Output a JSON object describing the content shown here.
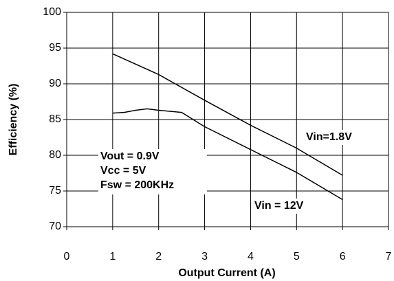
{
  "chart_data": {
    "type": "line",
    "x_label": "Output Current (A)",
    "y_label": "Efficiency (%)",
    "xlim": [
      0,
      7
    ],
    "xticks": [
      0,
      1,
      2,
      3,
      4,
      5,
      6,
      7
    ],
    "ylim": [
      70,
      100
    ],
    "yticks": [
      70,
      75,
      80,
      85,
      90,
      95,
      100
    ],
    "grid": true,
    "series": [
      {
        "name": "Vin=1.8V",
        "color": "#000000",
        "x": [
          1,
          2,
          3,
          4,
          5,
          6
        ],
        "values": [
          94.2,
          91.3,
          87.7,
          84.2,
          81.0,
          77.2
        ]
      },
      {
        "name": "Vin = 12V",
        "color": "#000000",
        "x": [
          1,
          1.25,
          1.5,
          1.75,
          2,
          2.5,
          3,
          4,
          5,
          6
        ],
        "values": [
          85.9,
          86.0,
          86.3,
          86.5,
          86.3,
          86.0,
          84.0,
          80.8,
          77.6,
          73.8
        ]
      }
    ],
    "annotations": [
      "Vout = 0.9V",
      "Vcc = 5V",
      "Fsw = 200KHz"
    ]
  }
}
